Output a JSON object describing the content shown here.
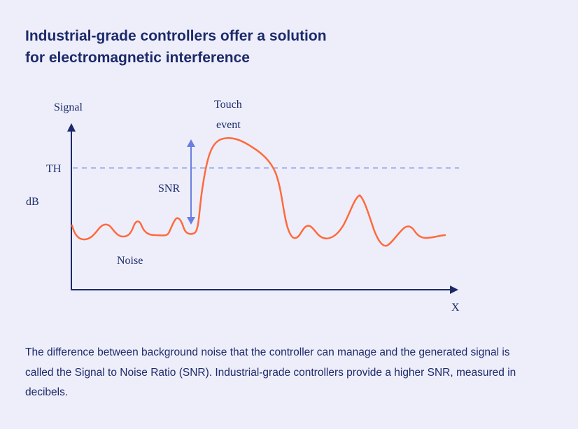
{
  "title": {
    "line1": "Industrial-grade controllers offer a solution",
    "line2": "for electromagnetic interference"
  },
  "diagram": {
    "y_axis_label": "Signal",
    "y_unit_label": "dB",
    "x_axis_label": "X",
    "threshold_label": "TH",
    "snr_label": "SNR",
    "touch_label_line1": "Touch",
    "touch_label_line2": "event",
    "noise_label": "Noise",
    "colors": {
      "axis": "#1c2a6b",
      "signal": "#ff6a3d",
      "threshold": "#6b7fe0",
      "snr_arrow": "#6b7fe0",
      "background": "#eeeefa"
    }
  },
  "caption": "The difference between background noise that the controller can manage and the generated signal is called the Signal to Noise Ratio (SNR). Industrial-grade controllers provide a higher SNR, measured in decibels."
}
